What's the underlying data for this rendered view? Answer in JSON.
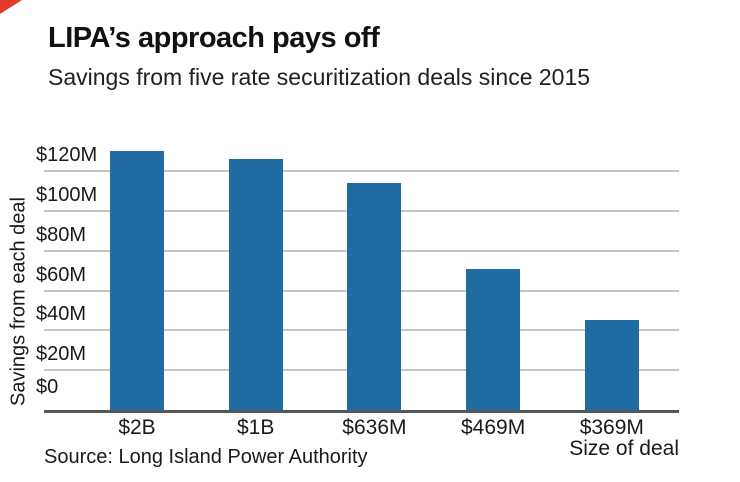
{
  "header": {
    "corner_mark_color": "#e23b2e"
  },
  "chart_data": {
    "type": "bar",
    "title": "LIPA’s approach pays off",
    "subtitle": "Savings from five rate securitization deals since 2015",
    "xlabel": "Size of deal",
    "ylabel": "Savings from each deal",
    "categories": [
      "$2B",
      "$1B",
      "$636M",
      "$469M",
      "$369M"
    ],
    "values": [
      130,
      126,
      114,
      71,
      45
    ],
    "values_unit": "USD millions (savings per deal)",
    "yticks": [
      "$120M",
      "$100M",
      "$80M",
      "$60M",
      "$40M",
      "$20M",
      "$0"
    ],
    "ytick_values": [
      120,
      100,
      80,
      60,
      40,
      20,
      0
    ],
    "ylim": [
      0,
      135
    ],
    "grid": "horizontal, light gray lines at each labeled tick; labels sit above their gridline; dark baseline at $0",
    "legend": "none",
    "colors": {
      "bar": "#1f6ca3",
      "gridline": "#c5c5c5",
      "baseline": "#56575a",
      "text": "#1a1a1a"
    }
  },
  "footer": {
    "source": "Source: Long Island Power Authority"
  }
}
